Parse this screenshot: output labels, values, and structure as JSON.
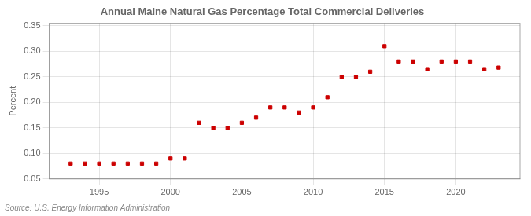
{
  "chart_data": {
    "type": "scatter",
    "title": "Annual Maine Natural Gas Percentage Total Commercial Deliveries",
    "ylabel": "Percent",
    "annotations": [
      "Source: U.S. Energy Information Administration"
    ],
    "x": [
      1993,
      1994,
      1995,
      1996,
      1997,
      1998,
      1999,
      2000,
      2001,
      2002,
      2003,
      2004,
      2005,
      2006,
      2007,
      2008,
      2009,
      2010,
      2011,
      2012,
      2013,
      2014,
      2015,
      2016,
      2017,
      2018,
      2019,
      2020,
      2021,
      2022,
      2023
    ],
    "values": [
      0.08,
      0.08,
      0.08,
      0.08,
      0.08,
      0.08,
      0.08,
      0.09,
      0.09,
      0.16,
      0.15,
      0.15,
      0.16,
      0.17,
      0.19,
      0.19,
      0.18,
      0.19,
      0.21,
      0.25,
      0.25,
      0.26,
      0.31,
      0.28,
      0.28,
      0.265,
      0.28,
      0.28,
      0.28,
      0.265,
      0.268
    ],
    "color": "#cc0000",
    "marker": "square",
    "xlim": [
      1991.5,
      2024.5
    ],
    "ylim": [
      0.05,
      0.355
    ],
    "xticks": [
      1995,
      2000,
      2005,
      2010,
      2015,
      2020
    ],
    "yticks": [
      0.05,
      {
        "value": 0.1,
        "label": "0.10"
      },
      0.15,
      {
        "value": 0.2,
        "label": "0.20"
      },
      0.25,
      {
        "value": 0.3,
        "label": "0.30"
      },
      0.35
    ],
    "grid": true
  }
}
